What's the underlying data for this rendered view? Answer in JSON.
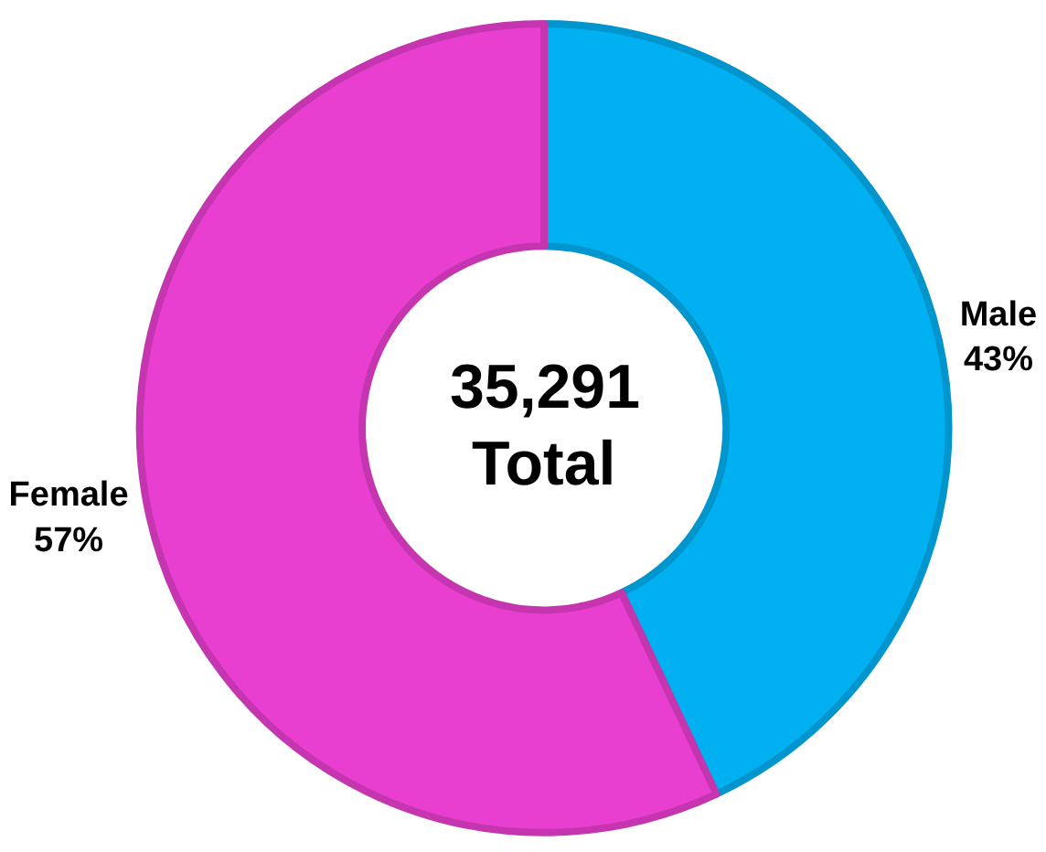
{
  "chart_data": {
    "type": "donut",
    "categories": [
      "Male",
      "Female"
    ],
    "values": [
      43,
      57
    ],
    "value_labels": [
      "43%",
      "57%"
    ],
    "colors": [
      "#00b0f0",
      "#e83fd0"
    ],
    "annotations": [
      "35,291",
      "Total"
    ],
    "legend": false
  }
}
